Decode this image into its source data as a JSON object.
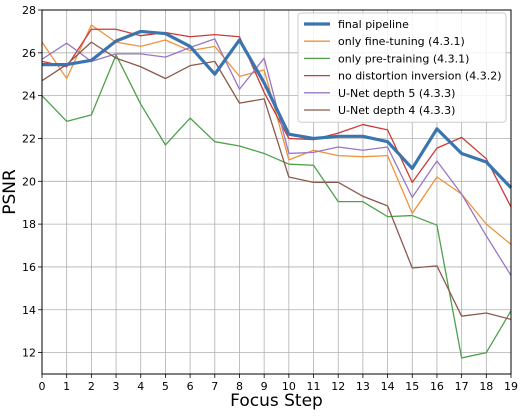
{
  "chart_data": {
    "type": "line",
    "xlabel": "Focus Step",
    "ylabel": "PSNR",
    "xlim": [
      0,
      19
    ],
    "ylim": [
      11,
      28
    ],
    "x": [
      0,
      1,
      2,
      3,
      4,
      5,
      6,
      7,
      8,
      9,
      10,
      11,
      12,
      13,
      14,
      15,
      16,
      17,
      18,
      19
    ],
    "xticks": [
      "0",
      "1",
      "2",
      "3",
      "4",
      "5",
      "6",
      "7",
      "8",
      "9",
      "10",
      "11",
      "12",
      "13",
      "14",
      "15",
      "16",
      "17",
      "18",
      "19"
    ],
    "yticks": [
      "12",
      "14",
      "16",
      "18",
      "20",
      "22",
      "24",
      "26",
      "28"
    ],
    "grid": true,
    "legend_position": "top-right",
    "series": [
      {
        "name": "final pipeline",
        "color": "#3a75b0",
        "width": 3.2,
        "values": [
          25.45,
          25.45,
          25.65,
          26.55,
          27.0,
          26.9,
          26.3,
          25.0,
          26.6,
          24.6,
          22.2,
          22.0,
          22.1,
          22.1,
          21.85,
          20.6,
          22.45,
          21.3,
          20.9,
          19.7
        ]
      },
      {
        "name": "only fine-tuning (4.3.1)",
        "color": "#f0923a",
        "width": 1.3,
        "values": [
          26.5,
          24.8,
          27.3,
          26.5,
          26.3,
          26.6,
          26.1,
          26.3,
          24.9,
          25.2,
          21.0,
          21.45,
          21.2,
          21.15,
          21.2,
          18.5,
          20.2,
          19.4,
          18.0,
          17.05
        ]
      },
      {
        "name": "only pre-training (4.3.1)",
        "color": "#4da14b",
        "width": 1.3,
        "values": [
          24.0,
          22.8,
          23.1,
          25.9,
          23.6,
          21.7,
          22.95,
          21.85,
          21.65,
          21.3,
          20.8,
          20.75,
          19.05,
          19.05,
          18.35,
          18.4,
          17.95,
          11.75,
          12.0,
          13.95
        ]
      },
      {
        "name": "no distortion inversion (4.3.2)",
        "color": "#cc3a36",
        "width": 1.3,
        "values": [
          25.6,
          25.35,
          27.1,
          27.1,
          26.8,
          26.95,
          26.75,
          26.85,
          26.75,
          24.15,
          22.0,
          21.95,
          22.25,
          22.65,
          22.4,
          19.95,
          21.55,
          22.05,
          21.05,
          18.8
        ]
      },
      {
        "name": "U-Net depth 5 (4.3.3)",
        "color": "#9a77c2",
        "width": 1.3,
        "values": [
          25.7,
          26.45,
          25.6,
          25.95,
          25.95,
          25.8,
          26.25,
          26.65,
          24.3,
          25.75,
          21.3,
          21.35,
          21.6,
          21.45,
          21.6,
          19.25,
          20.95,
          19.4,
          17.45,
          15.6
        ]
      },
      {
        "name": "U-Net depth 4 (4.3.3)",
        "color": "#8b5a4c",
        "width": 1.3,
        "values": [
          24.7,
          25.45,
          26.5,
          25.75,
          25.35,
          24.8,
          25.4,
          25.6,
          23.65,
          23.85,
          20.2,
          19.95,
          19.95,
          19.3,
          18.85,
          15.95,
          16.05,
          13.7,
          13.85,
          13.55
        ]
      }
    ]
  }
}
